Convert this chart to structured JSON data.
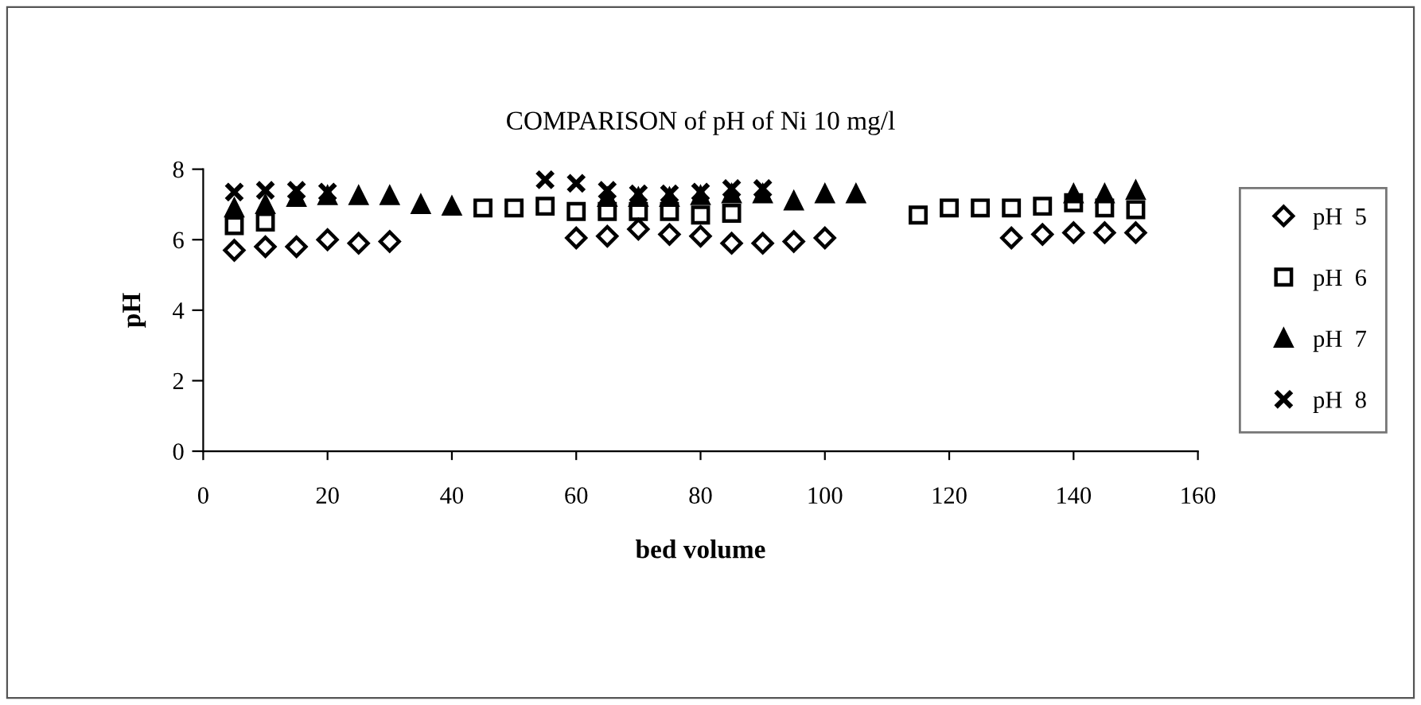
{
  "chart_data": {
    "type": "scatter",
    "title": "COMPARISON of pH of Ni 10 mg/l",
    "xlabel": "bed volume",
    "ylabel": "pH",
    "xlim": [
      0,
      160
    ],
    "xticks": [
      0,
      20,
      40,
      60,
      80,
      100,
      120,
      140,
      160
    ],
    "ylim": [
      0,
      8
    ],
    "yticks": [
      0,
      2,
      4,
      6,
      8
    ],
    "grid": false,
    "legend": "right",
    "series": [
      {
        "name": "pH  5",
        "color": "#000000",
        "marker": "diamond",
        "x": [
          5,
          10,
          15,
          20,
          25,
          30,
          60,
          65,
          70,
          75,
          80,
          85,
          90,
          95,
          100,
          130,
          135,
          140,
          145,
          150
        ],
        "values": [
          5.7,
          5.8,
          5.8,
          6.0,
          5.9,
          5.95,
          6.05,
          6.1,
          6.3,
          6.15,
          6.1,
          5.9,
          5.9,
          5.95,
          6.05,
          6.05,
          6.15,
          6.2,
          6.2,
          6.2
        ]
      },
      {
        "name": "pH  6",
        "color": "#000000",
        "marker": "square",
        "x": [
          5,
          10,
          45,
          50,
          55,
          60,
          65,
          70,
          75,
          80,
          85,
          115,
          120,
          125,
          130,
          135,
          140,
          145,
          150
        ],
        "values": [
          6.4,
          6.5,
          6.9,
          6.9,
          6.95,
          6.8,
          6.8,
          6.8,
          6.8,
          6.7,
          6.75,
          6.7,
          6.9,
          6.9,
          6.9,
          6.95,
          7.05,
          6.9,
          6.85
        ]
      },
      {
        "name": "pH  7",
        "color": "#000000",
        "marker": "triangle",
        "x": [
          5,
          10,
          15,
          20,
          25,
          30,
          35,
          40,
          65,
          70,
          75,
          80,
          85,
          90,
          95,
          100,
          105,
          140,
          145,
          150
        ],
        "values": [
          6.9,
          7.0,
          7.2,
          7.25,
          7.25,
          7.25,
          7.0,
          6.95,
          7.2,
          7.2,
          7.2,
          7.25,
          7.3,
          7.3,
          7.1,
          7.3,
          7.3,
          7.3,
          7.3,
          7.4
        ]
      },
      {
        "name": "pH  8",
        "color": "#000000",
        "marker": "cross",
        "x": [
          5,
          10,
          15,
          20,
          55,
          60,
          65,
          70,
          75,
          80,
          85,
          90
        ],
        "values": [
          7.35,
          7.4,
          7.4,
          7.35,
          7.7,
          7.6,
          7.4,
          7.3,
          7.3,
          7.35,
          7.45,
          7.45
        ]
      }
    ]
  }
}
